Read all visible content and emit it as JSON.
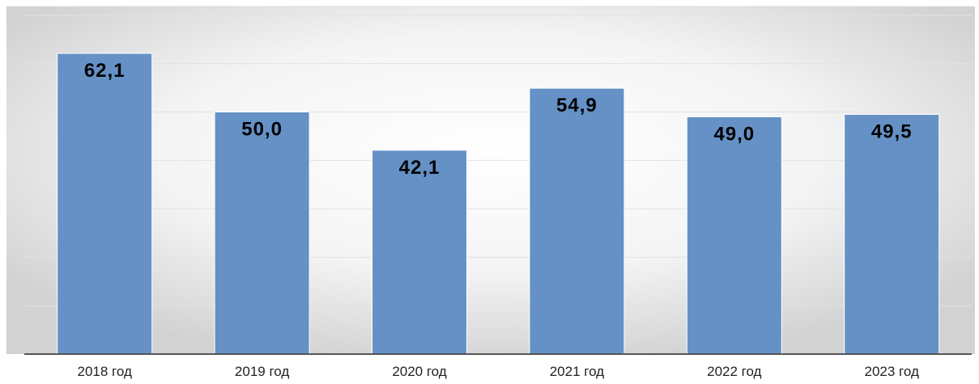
{
  "chart_data": {
    "type": "bar",
    "categories": [
      "2018 год",
      "2019 год",
      "2020 год",
      "2021 год",
      "2022 год",
      "2023 год"
    ],
    "values": [
      62.1,
      50.0,
      42.1,
      54.9,
      49.0,
      49.5
    ],
    "data_labels": [
      "62,1",
      "50,0",
      "42,1",
      "54,9",
      "49,0",
      "49,5"
    ],
    "title": "",
    "xlabel": "",
    "ylabel": "",
    "ylim": [
      0,
      70
    ],
    "grid": true,
    "legend": "none",
    "colors": {
      "bar_fill": "#6591c6",
      "bar_edge": "#ffffff",
      "axis": "#555555",
      "grid": "#e2e2e2",
      "background_center": "#ffffff",
      "background_edge": "#d2d2d2"
    }
  }
}
